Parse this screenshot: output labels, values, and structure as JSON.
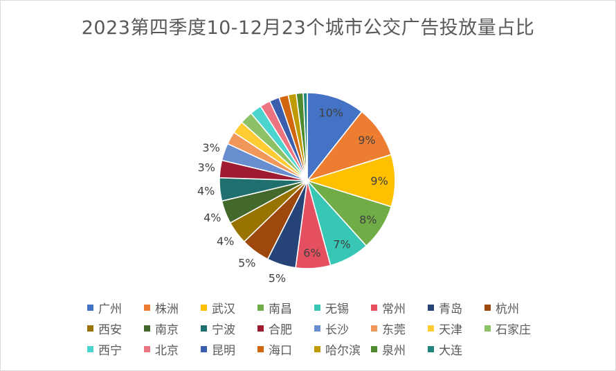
{
  "chart_data": {
    "type": "pie",
    "title": "2023第四季度10-12月23个城市公交广告投放量占比",
    "categories": [
      "广州",
      "株洲",
      "武汉",
      "南昌",
      "无锡",
      "常州",
      "青岛",
      "杭州",
      "西安",
      "南京",
      "宁波",
      "合肥",
      "长沙",
      "东莞",
      "天津",
      "石家庄",
      "西宁",
      "北京",
      "昆明",
      "海口",
      "哈尔滨",
      "泉州",
      "大连"
    ],
    "values": [
      10,
      9,
      9,
      8,
      7,
      6,
      5,
      5,
      4,
      4,
      4,
      3,
      3,
      2.2,
      2.2,
      2.2,
      2,
      1.8,
      1.7,
      1.6,
      1.4,
      1.2,
      0.7
    ],
    "data_labels": [
      "10%",
      "9%",
      "9%",
      "8%",
      "7%",
      "6%",
      "5%",
      "5%",
      "4%",
      "4%",
      "4%",
      "3%",
      "3%",
      "",
      "",
      "",
      "",
      "",
      "",
      "",
      "",
      "",
      ""
    ],
    "colors": [
      "#4472C4",
      "#ED7D31",
      "#FFC000",
      "#70AD47",
      "#38C6B5",
      "#E4505F",
      "#264478",
      "#9E480E",
      "#997300",
      "#43682B",
      "#1F6F6E",
      "#9E1B32",
      "#698ED0",
      "#F1975A",
      "#FFCD33",
      "#8CC168",
      "#4CD4CF",
      "#EC7480",
      "#3A5DAE",
      "#D2660F",
      "#BF9B00",
      "#4E8A2E",
      "#21867B"
    ],
    "legend_position": "bottom",
    "start_angle_deg": 0,
    "direction": "clockwise"
  }
}
